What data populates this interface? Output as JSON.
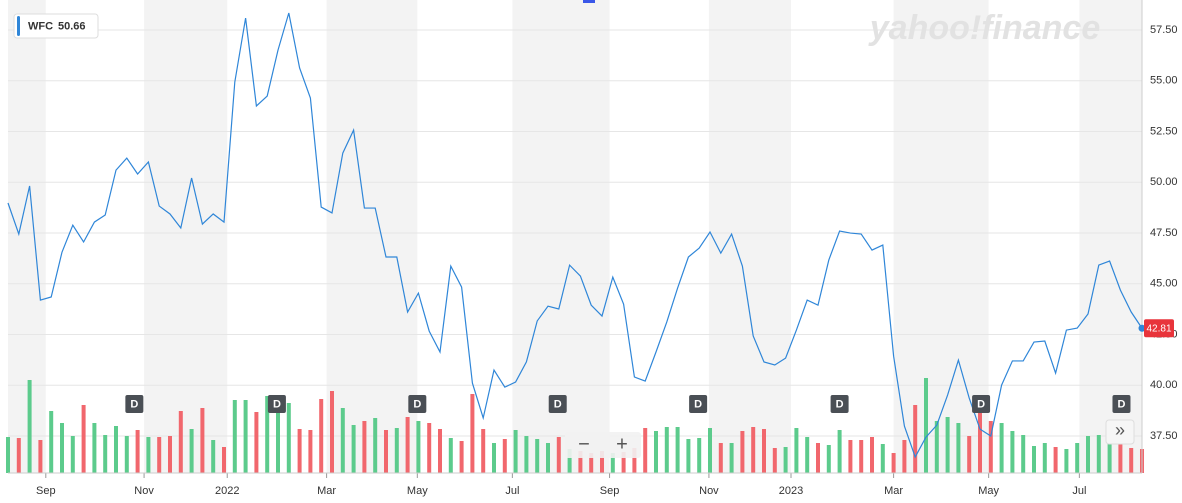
{
  "chart_data": {
    "type": "line",
    "watermark": "yahoo!finance",
    "legend": {
      "symbol": "WFC",
      "value": 50.66
    },
    "x": [
      0,
      1,
      2,
      3,
      4,
      5,
      6,
      7,
      8,
      9,
      10,
      11,
      12,
      13,
      14,
      15,
      16,
      17,
      18,
      19,
      20,
      21,
      22,
      23,
      24,
      25,
      26,
      27,
      28,
      29,
      30,
      31,
      32,
      33,
      34,
      35,
      36,
      37,
      38,
      39,
      40,
      41,
      42,
      43,
      44,
      45,
      46,
      47,
      48,
      49,
      50,
      51,
      52,
      53,
      54,
      55,
      56,
      57,
      58,
      59,
      60,
      61,
      62,
      63,
      64,
      65,
      66,
      67,
      68,
      69,
      70,
      71,
      72,
      73,
      74,
      75,
      76,
      77,
      78,
      79,
      80,
      81,
      82,
      83,
      84,
      85,
      86,
      87,
      88,
      89,
      90,
      91,
      92,
      93,
      94,
      95,
      96,
      97,
      98,
      99,
      100,
      101,
      102,
      103,
      104,
      105
    ],
    "series": [
      {
        "name": "WFC",
        "color": "#2f86d8",
        "values": [
          48.98,
          47.45,
          49.82,
          44.2,
          44.35,
          46.56,
          47.89,
          47.06,
          48.04,
          48.39,
          50.6,
          51.19,
          50.41,
          51.0,
          48.83,
          48.44,
          47.75,
          50.21,
          47.94,
          48.44,
          48.04,
          54.94,
          58.09,
          53.76,
          54.25,
          56.51,
          58.34,
          55.63,
          54.15,
          48.78,
          48.49,
          51.44,
          52.57,
          48.73,
          48.73,
          46.32,
          46.32,
          43.61,
          44.54,
          42.67,
          41.64,
          45.87,
          44.84,
          40.11,
          38.39,
          40.75,
          39.91,
          40.16,
          41.15,
          43.17,
          43.9,
          43.76,
          45.92,
          45.38,
          43.95,
          43.41,
          45.33,
          44.0,
          40.41,
          40.21,
          41.64,
          43.12,
          44.79,
          46.32,
          46.76,
          47.55,
          46.51,
          47.45,
          45.87,
          42.43,
          41.15,
          41.0,
          41.34,
          42.72,
          44.2,
          43.95,
          46.17,
          47.6,
          47.5,
          47.45,
          46.66,
          46.91,
          41.44,
          37.99,
          36.47,
          37.45,
          38.04,
          39.52,
          41.24,
          39.37,
          37.84,
          37.5,
          40.01,
          41.2,
          41.2,
          42.13,
          42.18,
          40.6,
          42.72,
          42.82,
          43.51,
          45.92,
          46.12,
          44.69,
          43.61,
          42.81
        ]
      },
      {
        "name": "Volume",
        "axis": "volume",
        "up_color": "#5ccb8c",
        "down_color": "#f1676d",
        "values": [
          36,
          35,
          93,
          33,
          62,
          50,
          37,
          68,
          50,
          38,
          47,
          37,
          43,
          36,
          36,
          37,
          62,
          44,
          65,
          33,
          26,
          73,
          73,
          61,
          77,
          78,
          70,
          44,
          43,
          74,
          82,
          65,
          48,
          52,
          55,
          43,
          45,
          56,
          52,
          50,
          44,
          35,
          32,
          79,
          44,
          30,
          34,
          43,
          37,
          34,
          30,
          36,
          24,
          22,
          20,
          22,
          20,
          21,
          25,
          45,
          42,
          46,
          46,
          34,
          35,
          45,
          30,
          30,
          42,
          46,
          44,
          25,
          26,
          45,
          36,
          30,
          28,
          43,
          33,
          33,
          36,
          29,
          20,
          33,
          68,
          95,
          52,
          56,
          50,
          37,
          71,
          52,
          50,
          42,
          38,
          27,
          30,
          26,
          24,
          30,
          37,
          38,
          33,
          32,
          25,
          24
        ]
      }
    ],
    "events": [
      {
        "label": "D",
        "x": 11.7
      },
      {
        "label": "D",
        "x": 24.9
      },
      {
        "label": "D",
        "x": 37.9
      },
      {
        "label": "D",
        "x": 50.9
      },
      {
        "label": "D",
        "x": 63.9
      },
      {
        "label": "D",
        "x": 77.0
      },
      {
        "label": "D",
        "x": 90.1
      },
      {
        "label": "D",
        "x": 103.1
      }
    ],
    "controls": [
      "−",
      "+",
      "»"
    ],
    "xlim": [
      0,
      105
    ],
    "xticks": [
      {
        "value": 3.5,
        "label": "Sep"
      },
      {
        "value": 12.6,
        "label": "Nov"
      },
      {
        "value": 20.3,
        "label": "2022"
      },
      {
        "value": 29.5,
        "label": "Mar"
      },
      {
        "value": 37.9,
        "label": "May"
      },
      {
        "value": 46.7,
        "label": "Jul"
      },
      {
        "value": 55.7,
        "label": "Sep"
      },
      {
        "value": 64.9,
        "label": "Nov"
      },
      {
        "value": 72.5,
        "label": "2023"
      },
      {
        "value": 82.0,
        "label": "Mar"
      },
      {
        "value": 90.8,
        "label": "May"
      },
      {
        "value": 99.2,
        "label": "Jul"
      }
    ],
    "ylim": [
      35.68,
      58.98
    ],
    "yticks": [
      {
        "value": 37.5,
        "label": "37.50"
      },
      {
        "value": 40,
        "label": "40.00"
      },
      {
        "value": 42.5,
        "label": "42.50"
      },
      {
        "value": 45,
        "label": "45.00"
      },
      {
        "value": 47.5,
        "label": "47.50"
      },
      {
        "value": 50,
        "label": "50.00"
      },
      {
        "value": 52.5,
        "label": "52.50"
      },
      {
        "value": 55,
        "label": "55.00"
      },
      {
        "value": 57.5,
        "label": "57.50"
      }
    ],
    "grid": true,
    "bands": true
  }
}
